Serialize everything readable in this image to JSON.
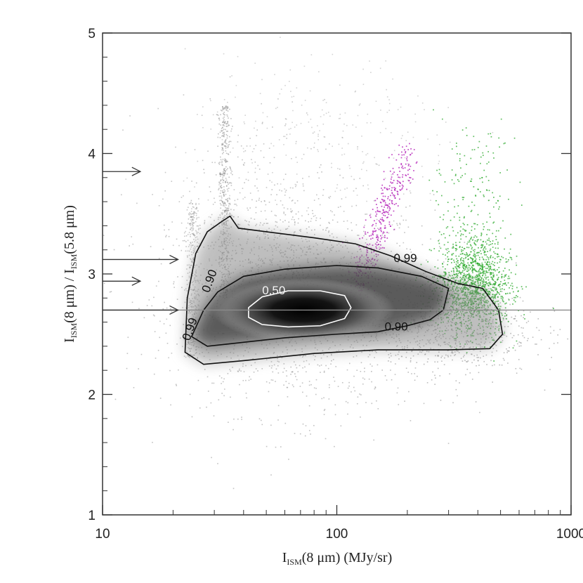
{
  "chart_data": {
    "type": "scatter",
    "title": "",
    "xlabel": {
      "main": "I",
      "sub": "ISM",
      "rest": "(8 μm) (MJy/sr)"
    },
    "ylabel": {
      "main1": "I",
      "sub1": "ISM",
      "mid": "(8 μm) / I",
      "sub2": "ISM",
      "rest": "(5.8 μm)"
    },
    "x_scale": "log",
    "xlim": [
      10,
      1000
    ],
    "ylim": [
      1,
      5
    ],
    "x_ticks": [
      {
        "value": 10,
        "label": "10"
      },
      {
        "value": 100,
        "label": "100"
      },
      {
        "value": 1000,
        "label": "1000"
      }
    ],
    "y_ticks": [
      {
        "value": 1,
        "label": "1"
      },
      {
        "value": 2,
        "label": "2"
      },
      {
        "value": 3,
        "label": "3"
      },
      {
        "value": 4,
        "label": "4"
      },
      {
        "value": 5,
        "label": "5"
      }
    ],
    "reference_line_y": 2.7,
    "arrows": [
      {
        "y": 3.85,
        "x_end": 14.5
      },
      {
        "y": 3.12,
        "x_end": 21
      },
      {
        "y": 2.94,
        "x_end": 14.5
      },
      {
        "y": 2.7,
        "x_end": 21
      }
    ],
    "contours": [
      {
        "level": "0.50",
        "color": "#ffffff",
        "label": "0.50",
        "label_at": [
          48,
          2.83
        ],
        "points": [
          [
            42,
            2.72
          ],
          [
            48,
            2.81
          ],
          [
            62,
            2.86
          ],
          [
            85,
            2.86
          ],
          [
            108,
            2.82
          ],
          [
            115,
            2.72
          ],
          [
            108,
            2.63
          ],
          [
            85,
            2.57
          ],
          [
            62,
            2.56
          ],
          [
            48,
            2.58
          ],
          [
            42,
            2.64
          ]
        ]
      },
      {
        "level": "0.90",
        "color": "#111111",
        "label": "0.90",
        "label_at": [
          160,
          2.53
        ],
        "points": [
          [
            24,
            2.48
          ],
          [
            27,
            2.7
          ],
          [
            31,
            2.85
          ],
          [
            40,
            2.98
          ],
          [
            60,
            3.04
          ],
          [
            100,
            3.07
          ],
          [
            150,
            3.05
          ],
          [
            230,
            2.98
          ],
          [
            300,
            2.88
          ],
          [
            285,
            2.7
          ],
          [
            250,
            2.62
          ],
          [
            200,
            2.57
          ],
          [
            150,
            2.52
          ],
          [
            100,
            2.5
          ],
          [
            60,
            2.47
          ],
          [
            35,
            2.42
          ],
          [
            28,
            2.4
          ]
        ]
      },
      {
        "level": "0.99",
        "color": "#111111",
        "label": "0.99",
        "label_at": [
          175,
          3.1
        ],
        "points": [
          [
            22.5,
            2.35
          ],
          [
            23,
            2.8
          ],
          [
            25,
            3.17
          ],
          [
            28,
            3.35
          ],
          [
            32,
            3.43
          ],
          [
            35,
            3.48
          ],
          [
            38,
            3.38
          ],
          [
            50,
            3.35
          ],
          [
            80,
            3.3
          ],
          [
            120,
            3.25
          ],
          [
            170,
            3.15
          ],
          [
            240,
            3.02
          ],
          [
            330,
            2.92
          ],
          [
            420,
            2.88
          ],
          [
            490,
            2.7
          ],
          [
            510,
            2.5
          ],
          [
            450,
            2.38
          ],
          [
            300,
            2.37
          ],
          [
            150,
            2.37
          ],
          [
            80,
            2.34
          ],
          [
            40,
            2.28
          ],
          [
            27,
            2.25
          ]
        ]
      }
    ],
    "contour_label_90_left": {
      "label": "0.90",
      "at": [
        28.5,
        2.84
      ]
    },
    "contour_label_99_left": {
      "label": "0.99",
      "at": [
        23.5,
        2.44
      ]
    },
    "scatter_series": [
      {
        "name": "",
        "color": "#909090",
        "center": [
          70,
          2.7
        ],
        "spread": "broad"
      },
      {
        "name": "",
        "color": "#b11ab5",
        "center": [
          140,
          3.2
        ],
        "spread": "narrow"
      },
      {
        "name": "",
        "color": "#2aa82a",
        "center": [
          400,
          2.95
        ],
        "spread": "cluster"
      }
    ],
    "grid": false,
    "legend": "none"
  }
}
